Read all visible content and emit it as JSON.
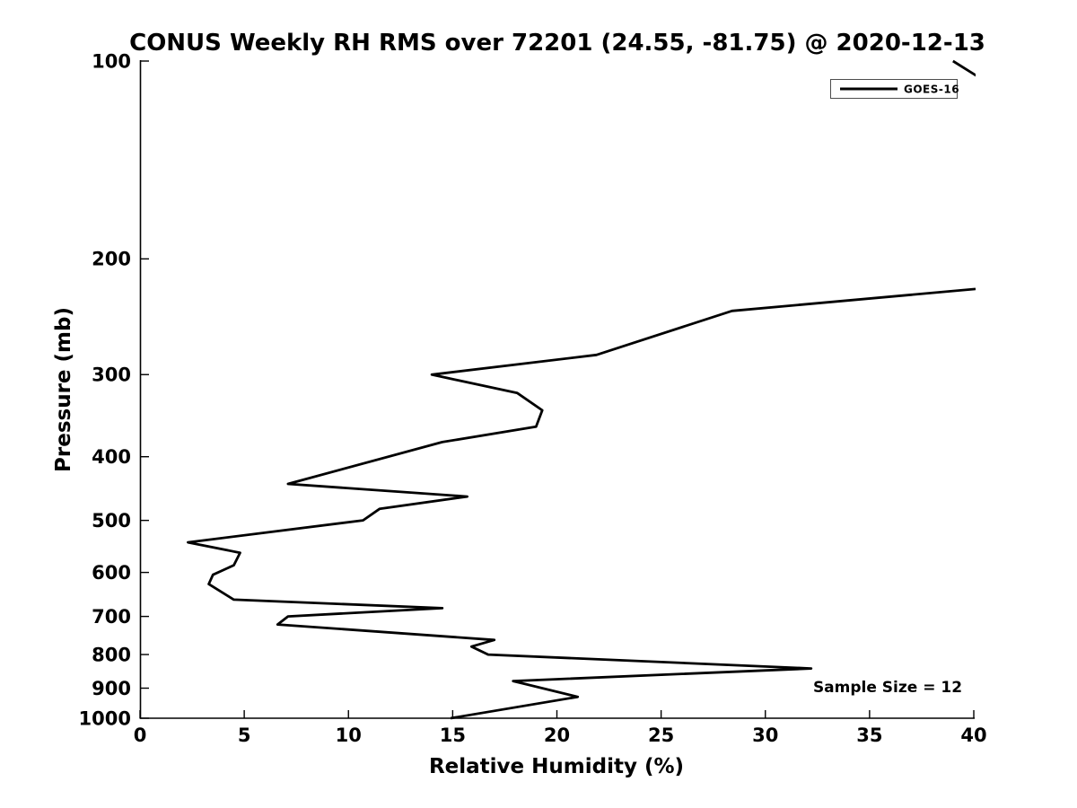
{
  "chart_data": {
    "type": "line",
    "title": "CONUS Weekly RH RMS over 72201 (24.55, -81.75) @ 2020-12-13",
    "xlabel": "Relative Humidity (%)",
    "ylabel": "Pressure (mb)",
    "annotation": "Sample Size = 12",
    "xlim": [
      0,
      40
    ],
    "ylim": [
      100,
      1000
    ],
    "y_scale": "log",
    "y_inverted": true,
    "grid": false,
    "legend_position": "top-right",
    "x_ticks": [
      0,
      5,
      10,
      15,
      20,
      25,
      30,
      35,
      40
    ],
    "y_ticks": [
      100,
      200,
      300,
      400,
      500,
      600,
      700,
      800,
      900,
      1000
    ],
    "line_color": "#000000",
    "series": [
      {
        "name": "GOES-16",
        "color": "#000000",
        "note": "points are [relative_humidity_rms_percent, pressure_mb]; values above 40 run off the right edge of the axes (clipped)",
        "points": [
          [
            39.0,
            100
          ],
          [
            43.0,
            120
          ],
          [
            41.6,
            220
          ],
          [
            28.4,
            240
          ],
          [
            21.9,
            280
          ],
          [
            14.0,
            300
          ],
          [
            18.1,
            320
          ],
          [
            19.3,
            340
          ],
          [
            19.0,
            360
          ],
          [
            14.5,
            380
          ],
          [
            7.1,
            440
          ],
          [
            15.7,
            460
          ],
          [
            11.5,
            480
          ],
          [
            10.7,
            500
          ],
          [
            2.3,
            540
          ],
          [
            4.8,
            560
          ],
          [
            4.5,
            585
          ],
          [
            3.5,
            605
          ],
          [
            3.3,
            625
          ],
          [
            4.5,
            660
          ],
          [
            14.5,
            680
          ],
          [
            7.1,
            700
          ],
          [
            6.6,
            720
          ],
          [
            17.0,
            760
          ],
          [
            15.9,
            778
          ],
          [
            16.7,
            800
          ],
          [
            32.2,
            840
          ],
          [
            17.9,
            878
          ],
          [
            21.0,
            928
          ],
          [
            14.9,
            1000
          ]
        ]
      }
    ]
  }
}
